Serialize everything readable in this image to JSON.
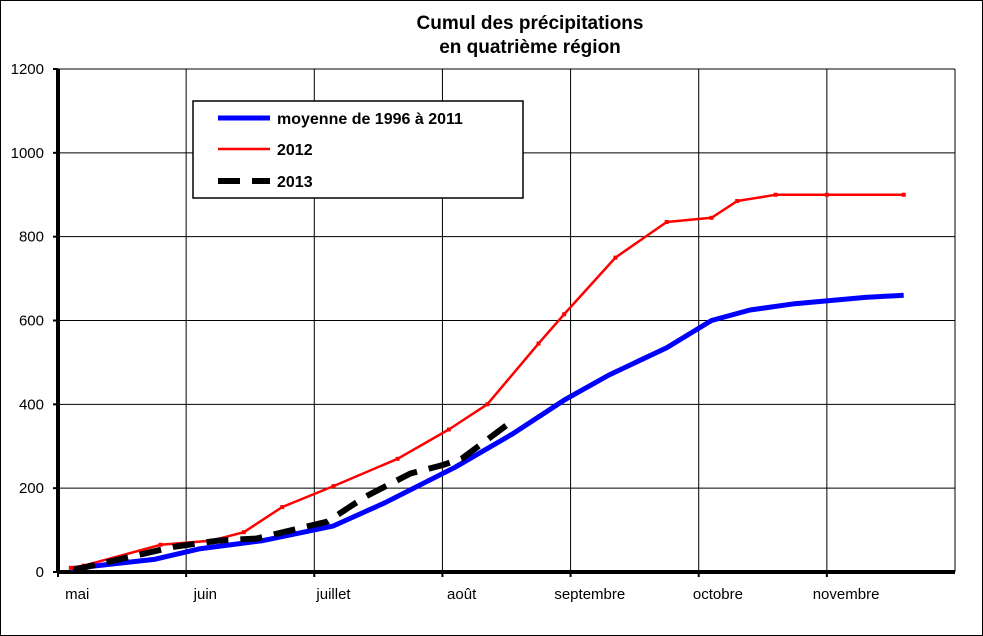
{
  "chart_data": {
    "type": "line",
    "title_lines": [
      "Cumul des précipitations",
      "en quatrième région"
    ],
    "xlabel": "",
    "ylabel": "",
    "categories": [
      "mai",
      "juin",
      "juillet",
      "août",
      "septembre",
      "octobre",
      "novembre"
    ],
    "ylim": [
      0,
      1200
    ],
    "yticks": [
      0,
      200,
      400,
      600,
      800,
      1000,
      1200
    ],
    "grid": true,
    "legend_position": "top-left",
    "series": [
      {
        "name": "moyenne de 1996 à 2011",
        "color": "#0000ff",
        "style": "solid-thick",
        "x": [
          0.1,
          0.75,
          1.1,
          1.6,
          2.15,
          2.55,
          3.1,
          3.55,
          3.95,
          4.3,
          4.75,
          5.1,
          5.4,
          5.75,
          6.3,
          6.6
        ],
        "values": [
          8,
          30,
          55,
          75,
          110,
          165,
          250,
          330,
          410,
          470,
          535,
          600,
          625,
          640,
          655,
          660
        ]
      },
      {
        "name": "2012",
        "color": "#ff0000",
        "style": "solid-thin",
        "x": [
          0.1,
          0.2,
          0.8,
          1.2,
          1.45,
          1.75,
          2.15,
          2.65,
          3.05,
          3.35,
          3.75,
          3.95,
          4.35,
          4.75,
          5.1,
          5.3,
          5.6,
          6.0,
          6.6
        ],
        "values": [
          10,
          15,
          65,
          75,
          95,
          155,
          205,
          270,
          340,
          400,
          545,
          615,
          750,
          835,
          845,
          885,
          900,
          900,
          900
        ]
      },
      {
        "name": "2013",
        "color": "#000000",
        "style": "dashed-thick",
        "x": [
          0.12,
          0.9,
          1.25,
          1.55,
          2.1,
          2.4,
          2.75,
          3.0,
          3.15,
          3.5
        ],
        "values": [
          5,
          60,
          75,
          80,
          120,
          180,
          235,
          255,
          270,
          350
        ]
      }
    ]
  }
}
